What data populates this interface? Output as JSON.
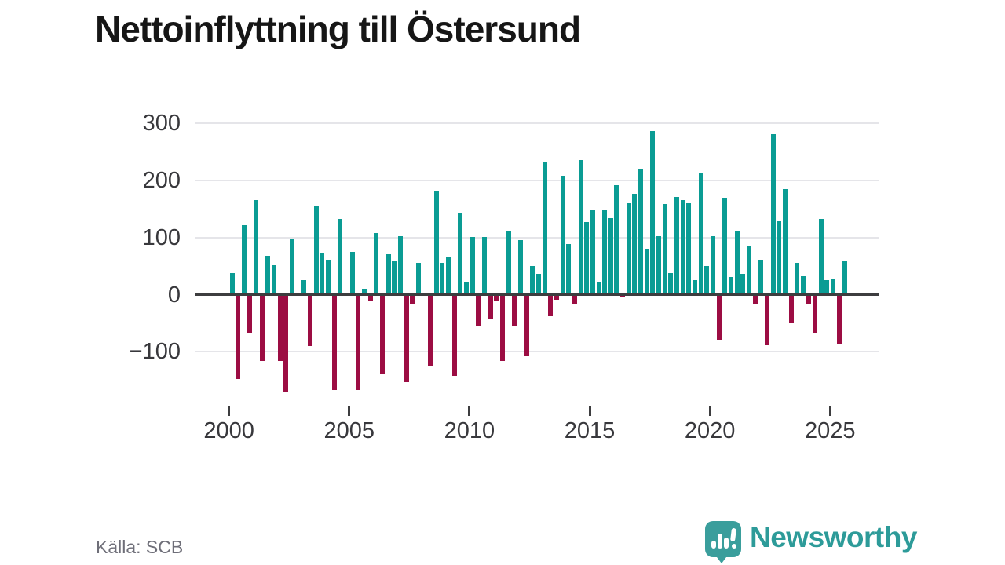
{
  "title": "Nettoinflyttning till Östersund",
  "source": "Källa: SCB",
  "branding": {
    "name": "Newsworthy",
    "icon": "speech-bubble-bar-chart-icon"
  },
  "colors": {
    "positive_bar": "#0a9c94",
    "negative_bar": "#9c0d43",
    "gridline": "#e5e5e9",
    "zero_axis": "#3d3d3f",
    "tick_label": "#38383c",
    "title_text": "#161616",
    "source_text": "#6e6e78",
    "brand_teal": "#2d9b99"
  },
  "chart_data": {
    "type": "bar",
    "title": "Nettoinflyttning till Östersund",
    "frequency": "quarterly",
    "start_period": "2000Q1",
    "end_period": "2025Q3",
    "xlabel": "",
    "ylabel": "",
    "ylim": [
      -198,
      310
    ],
    "grid": "horizontal",
    "legend": "none",
    "x_ticks": [
      2000,
      2005,
      2010,
      2015,
      2020,
      2025
    ],
    "x_tick_labels": [
      "2000",
      "2005",
      "2010",
      "2015",
      "2020",
      "2025"
    ],
    "y_ticks": [
      300,
      200,
      100,
      0,
      -100
    ],
    "y_tick_labels": [
      "300",
      "200",
      "100",
      "0",
      "−100"
    ],
    "positive_color": "#0a9c94",
    "negative_color": "#9c0d43",
    "values": [
      38,
      -147,
      122,
      -67,
      166,
      -116,
      68,
      51,
      -116,
      -171,
      98,
      0,
      25,
      -90,
      156,
      73,
      61,
      -167,
      133,
      0,
      75,
      -167,
      10,
      -10,
      108,
      -138,
      71,
      59,
      103,
      -153,
      -15,
      56,
      0,
      -126,
      182,
      56,
      66,
      -142,
      143,
      23,
      101,
      -55,
      101,
      -42,
      -11,
      -116,
      112,
      -55,
      95,
      -108,
      50,
      36,
      232,
      -38,
      -9,
      208,
      88,
      -16,
      236,
      127,
      149,
      23,
      149,
      134,
      192,
      -4,
      160,
      176,
      220,
      81,
      286,
      102,
      159,
      38,
      171,
      165,
      160,
      26,
      213,
      50,
      103,
      -79,
      169,
      31,
      112,
      37,
      86,
      -15,
      61,
      -89,
      281,
      130,
      185,
      -50,
      56,
      32,
      -17,
      -67,
      132,
      26,
      28,
      -87,
      59
    ]
  }
}
